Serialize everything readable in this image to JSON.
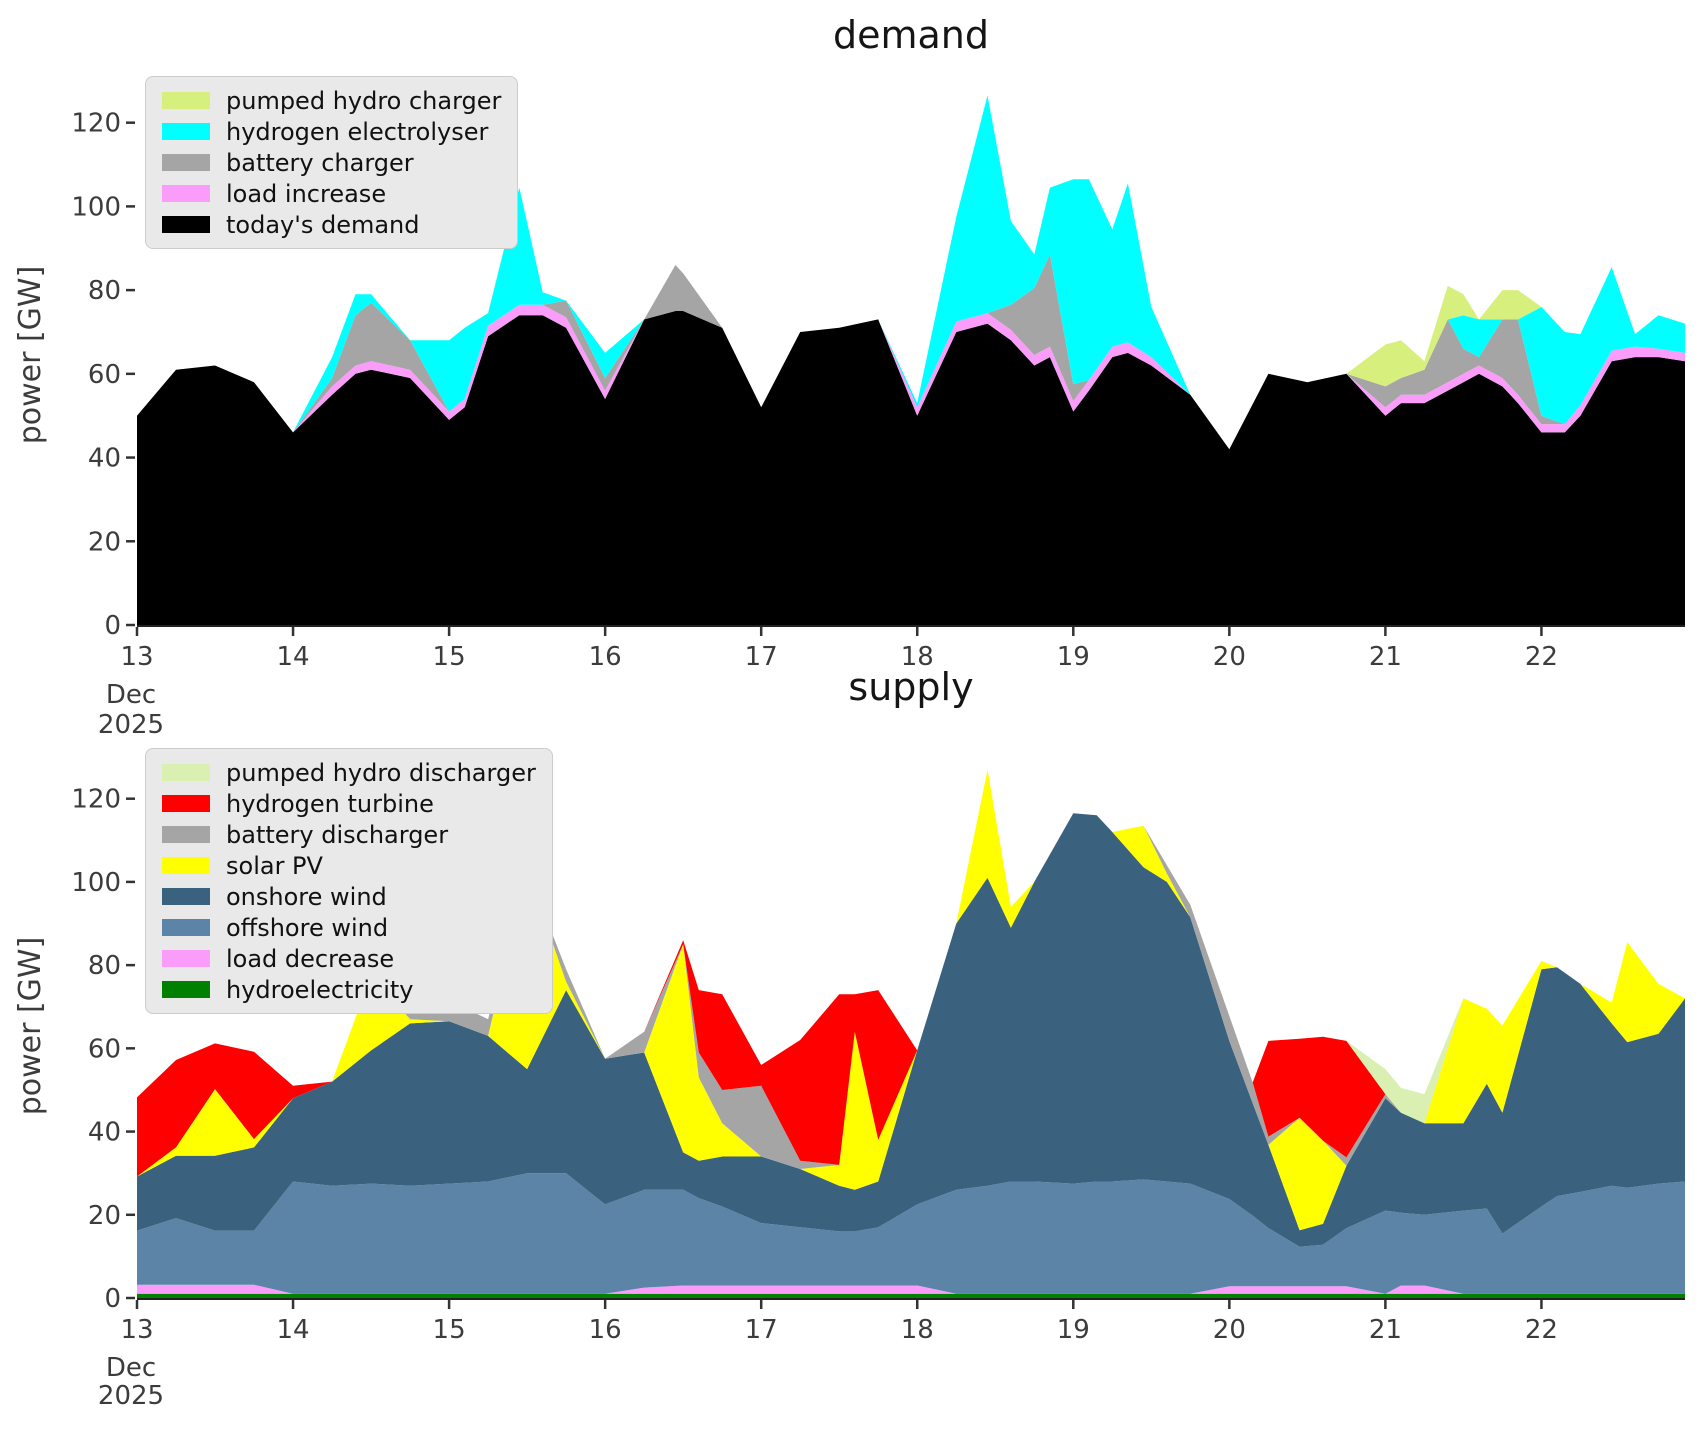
{
  "page": {
    "background": "#ffffff"
  },
  "charts": [
    {
      "title": "demand",
      "ylabel": "power [GW]",
      "xlabel_month": "Dec",
      "xlabel_year": "2025",
      "x_ticks": [
        "13",
        "14",
        "15",
        "16",
        "17",
        "18",
        "19",
        "20",
        "21",
        "22"
      ],
      "y_ticks": [
        "0",
        "20",
        "40",
        "60",
        "80",
        "100",
        "120"
      ],
      "legend": [
        {
          "label": "pumped hydro charger",
          "color": "#d7f07d"
        },
        {
          "label": "hydrogen electrolyser",
          "color": "#00ffff"
        },
        {
          "label": "battery charger",
          "color": "#a5a5a5"
        },
        {
          "label": "load increase",
          "color": "#fa9dfa"
        },
        {
          "label": "today's demand",
          "color": "#000000"
        }
      ],
      "chart_data": {
        "type": "area",
        "stacked": true,
        "title": "demand",
        "ylabel": "power [GW]",
        "x_unit": "day of Dec 2025",
        "x_range": [
          13,
          22.92
        ],
        "y_range": [
          0,
          129
        ],
        "grid": false,
        "legend_position": "upper left",
        "x": [
          13,
          13.25,
          13.5,
          13.75,
          14,
          14.25,
          14.4,
          14.5,
          14.75,
          15,
          15.1,
          15.25,
          15.45,
          15.6,
          15.75,
          16,
          16.25,
          16.45,
          16.5,
          16.75,
          17,
          17.25,
          17.5,
          17.75,
          18,
          18.25,
          18.45,
          18.6,
          18.75,
          18.85,
          19,
          19.1,
          19.25,
          19.35,
          19.5,
          19.75,
          20,
          20.25,
          20.5,
          20.75,
          21,
          21.1,
          21.25,
          21.4,
          21.5,
          21.6,
          21.75,
          21.85,
          22,
          22.15,
          22.25,
          22.45,
          22.6,
          22.75,
          22.92
        ],
        "series": [
          {
            "name": "today's demand",
            "color": "#000000",
            "values": [
              50,
              61,
              62,
              58,
              46,
              55,
              60,
              61,
              59,
              49,
              52,
              69,
              74,
              74,
              71,
              54,
              73,
              75,
              75,
              71,
              52,
              70,
              71,
              73,
              50,
              70,
              72,
              68,
              62,
              64,
              51,
              56,
              64,
              65,
              62,
              55,
              42,
              60,
              58,
              60,
              50,
              53,
              53,
              56,
              58,
              60,
              57,
              53,
              46,
              46,
              50,
              63,
              64,
              64,
              63
            ]
          },
          {
            "name": "load increase",
            "color": "#fa9dfa",
            "values": [
              0,
              0,
              0,
              0,
              0,
              2,
              2,
              2,
              2,
              2,
              2,
              2.5,
              2.5,
              2.5,
              2.5,
              2,
              0,
              0,
              0,
              0,
              0,
              0,
              0,
              0,
              2,
              2.5,
              2.5,
              2.5,
              2.5,
              2.5,
              2.5,
              2.5,
              2.5,
              2.5,
              2,
              0,
              0,
              0,
              0,
              0,
              2,
              2,
              2,
              2,
              2,
              2,
              2,
              2,
              2,
              2,
              2.5,
              2.5,
              2.5,
              2,
              2
            ]
          },
          {
            "name": "battery charger",
            "color": "#a5a5a5",
            "values": [
              0,
              0,
              0,
              0,
              0,
              2,
              12,
              14,
              7,
              0,
              0,
              0,
              0,
              0,
              4,
              3,
              0,
              11,
              9,
              0,
              0,
              0,
              0,
              0,
              0,
              0,
              0,
              6,
              16,
              22,
              4,
              0,
              0,
              0,
              0,
              0,
              0,
              0,
              0,
              0,
              5,
              4,
              6,
              15,
              6,
              2,
              14,
              18,
              2,
              0,
              0,
              0,
              0,
              0,
              0
            ]
          },
          {
            "name": "hydrogen electrolyser",
            "color": "#00ffff",
            "values": [
              0,
              0,
              0,
              0,
              0,
              5,
              5,
              2,
              0,
              17,
              17,
              3,
              28,
              3,
              0,
              6,
              0,
              0,
              0,
              0,
              0,
              0,
              0,
              0,
              1,
              25,
              52,
              20,
              8,
              16,
              49,
              48,
              28,
              38,
              12,
              0,
              0,
              0,
              0,
              0,
              0,
              0,
              0,
              0,
              8,
              9,
              0,
              0,
              26,
              22,
              17,
              20,
              3,
              8,
              7
            ]
          },
          {
            "name": "pumped hydro charger",
            "color": "#d7f07d",
            "values": [
              0,
              0,
              0,
              0,
              0,
              0,
              0,
              0,
              0,
              0,
              0,
              0,
              0,
              0,
              0,
              0,
              0,
              0,
              0,
              0,
              0,
              0,
              0,
              0,
              0,
              0,
              0,
              0,
              0,
              0,
              0,
              0,
              0,
              0,
              0,
              0,
              0,
              0,
              0,
              0,
              10,
              9,
              2,
              8,
              5,
              0,
              7,
              7,
              0,
              0,
              0,
              0,
              0,
              0,
              0
            ]
          }
        ]
      }
    },
    {
      "title": "supply",
      "ylabel": "power [GW]",
      "xlabel_month": "Dec",
      "xlabel_year": "2025",
      "x_ticks": [
        "13",
        "14",
        "15",
        "16",
        "17",
        "18",
        "19",
        "20",
        "21",
        "22"
      ],
      "y_ticks": [
        "0",
        "20",
        "40",
        "60",
        "80",
        "100",
        "120"
      ],
      "legend": [
        {
          "label": "pumped hydro discharger",
          "color": "#d9f0b2"
        },
        {
          "label": "hydrogen turbine",
          "color": "#ff0000"
        },
        {
          "label": "battery discharger",
          "color": "#a5a5a5"
        },
        {
          "label": "solar PV",
          "color": "#ffff00"
        },
        {
          "label": "onshore wind",
          "color": "#3a627f"
        },
        {
          "label": "offshore wind",
          "color": "#5c84a6"
        },
        {
          "label": "load decrease",
          "color": "#fa9dfa"
        },
        {
          "label": "hydroelectricity",
          "color": "#008000"
        }
      ],
      "chart_data": {
        "type": "area",
        "stacked": true,
        "title": "supply",
        "ylabel": "power [GW]",
        "x_unit": "day of Dec 2025",
        "x_range": [
          13,
          22.92
        ],
        "y_range": [
          0,
          130.5
        ],
        "grid": false,
        "legend_position": "upper left",
        "x": [
          13,
          13.25,
          13.5,
          13.75,
          14,
          14.25,
          14.5,
          14.75,
          15,
          15.25,
          15.5,
          15.75,
          16,
          16.25,
          16.5,
          16.6,
          16.75,
          17,
          17.25,
          17.5,
          17.6,
          17.75,
          18,
          18.25,
          18.45,
          18.6,
          18.75,
          19,
          19.15,
          19.25,
          19.45,
          19.6,
          19.75,
          20,
          20.15,
          20.25,
          20.45,
          20.6,
          20.75,
          21,
          21.1,
          21.25,
          21.5,
          21.65,
          21.75,
          22,
          22.1,
          22.25,
          22.45,
          22.55,
          22.75,
          22.92
        ],
        "series": [
          {
            "name": "hydroelectricity",
            "color": "#008000",
            "values": [
              1,
              1,
              1,
              1,
              1,
              1,
              1,
              1,
              1,
              1,
              1,
              1,
              1,
              1,
              1,
              1,
              1,
              1,
              1,
              1,
              1,
              1,
              1,
              1,
              1,
              1,
              1,
              1,
              1,
              1,
              1,
              1,
              1,
              1,
              1,
              1,
              1,
              1,
              1,
              1,
              1,
              1,
              1,
              1,
              1,
              1,
              1,
              1,
              1,
              1,
              1,
              1
            ]
          },
          {
            "name": "load decrease",
            "color": "#fa9dfa",
            "values": [
              2.2,
              2.2,
              2.2,
              2.2,
              0,
              0,
              0,
              0,
              0,
              0,
              0,
              0,
              0,
              1.5,
              2,
              2,
              2,
              2,
              2,
              2,
              2,
              2,
              2,
              0,
              0,
              0,
              0,
              0,
              0,
              0,
              0,
              0,
              0,
              1.8,
              1.8,
              1.8,
              1.8,
              1.8,
              1.8,
              0,
              2,
              2,
              0,
              0,
              0,
              0,
              0,
              0,
              0,
              0,
              0,
              0
            ]
          },
          {
            "name": "offshore wind",
            "color": "#5c84a6",
            "values": [
              13,
              16,
              13,
              13,
              27,
              26,
              26.5,
              26,
              26.5,
              27,
              29,
              29,
              21.5,
              23.5,
              23,
              21,
              19,
              15,
              14,
              13,
              13,
              14,
              19.5,
              25,
              26,
              27,
              27,
              26.5,
              27,
              27,
              27.5,
              27,
              26.5,
              21,
              17,
              14,
              9.5,
              10,
              14,
              20,
              17.5,
              17,
              20,
              20.5,
              14.5,
              21,
              23.5,
              24.5,
              26,
              25.5,
              26.5,
              27
            ]
          },
          {
            "name": "onshore wind",
            "color": "#3a627f",
            "values": [
              13,
              15,
              18,
              20,
              20,
              25,
              32,
              39,
              39,
              35,
              25,
              44,
              35,
              33,
              9,
              9,
              12,
              16,
              14,
              11,
              10,
              11,
              37,
              64,
              74,
              61,
              72,
              89,
              88,
              84,
              75,
              72,
              64,
              38,
              27,
              20,
              4,
              5,
              15,
              27,
              24,
              22,
              21,
              30,
              29,
              57,
              55,
              50,
              39,
              35,
              36,
              44
            ]
          },
          {
            "name": "solar PV",
            "color": "#ffff00",
            "values": [
              0,
              2,
              16,
              2,
              0,
              0,
              18,
              1,
              0,
              0,
              48,
              2,
              0,
              0,
              50,
              20,
              8,
              0,
              0,
              5,
              38,
              10,
              0,
              0,
              26,
              5,
              0,
              0,
              0,
              0,
              10,
              2,
              0,
              0,
              0,
              0,
              27,
              20,
              0,
              0,
              0,
              0,
              30,
              18,
              21,
              2,
              0,
              0,
              5,
              24,
              12,
              0
            ]
          },
          {
            "name": "battery discharger",
            "color": "#a5a5a5",
            "values": [
              0,
              0,
              0,
              0,
              0,
              0,
              0,
              4,
              5,
              4,
              0,
              3,
              0,
              5,
              0,
              6,
              8,
              17,
              2,
              0,
              0,
              0,
              0,
              0,
              0,
              0,
              0,
              0,
              0,
              0,
              0,
              2,
              3,
              6,
              5,
              2,
              0,
              0,
              2,
              1,
              0,
              0,
              0,
              0,
              0,
              0,
              0,
              0,
              0,
              0,
              0,
              0
            ]
          },
          {
            "name": "hydrogen turbine",
            "color": "#ff0000",
            "values": [
              19,
              21,
              11,
              21,
              3,
              0,
              0,
              0,
              0,
              0,
              0,
              0,
              0,
              0,
              1,
              15,
              23,
              5,
              29,
              41,
              9,
              36,
              0,
              0,
              0,
              0,
              0,
              0,
              0,
              0,
              0,
              0,
              0,
              0,
              0,
              23,
              19,
              25,
              28,
              0,
              0,
              0,
              0,
              0,
              0,
              0,
              0,
              0,
              0,
              0,
              0,
              0
            ]
          },
          {
            "name": "pumped hydro discharger",
            "color": "#d9f0b2",
            "values": [
              0,
              0,
              0,
              0,
              0,
              0,
              0,
              0,
              0,
              0,
              0,
              0,
              0,
              0,
              0,
              0,
              0,
              0,
              0,
              0,
              0,
              0,
              0,
              0,
              0,
              0,
              0,
              0,
              0,
              0,
              0,
              0,
              0,
              0,
              0,
              0,
              0,
              0,
              0,
              6,
              6,
              7,
              0,
              0,
              0,
              0,
              0,
              0,
              0,
              0,
              0,
              0
            ]
          }
        ]
      }
    }
  ]
}
